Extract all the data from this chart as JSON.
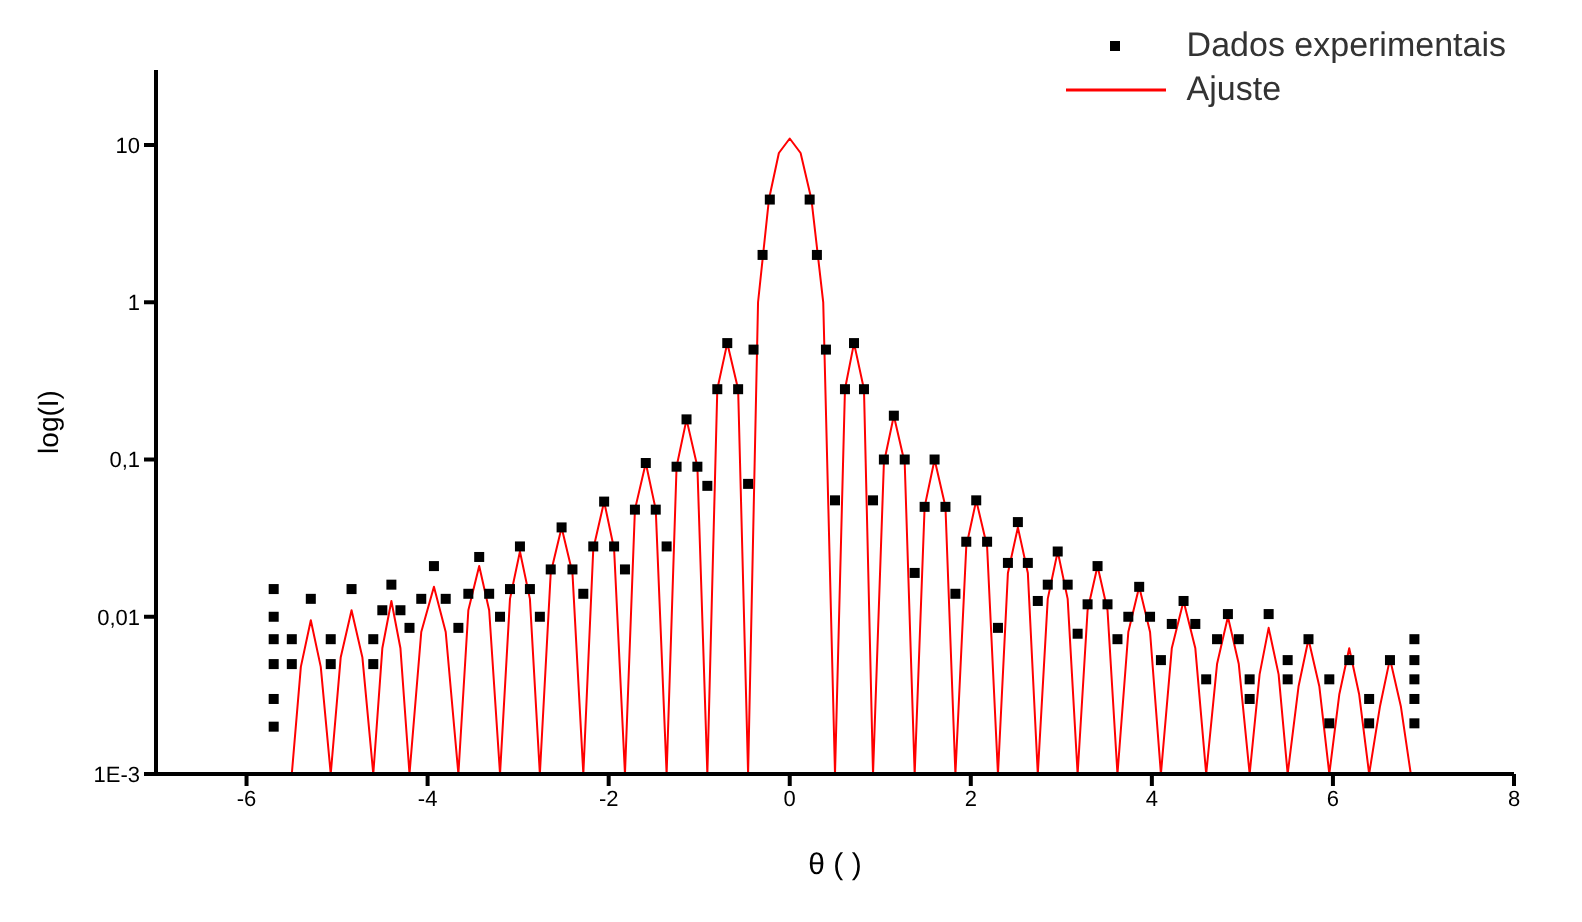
{
  "chart_data": {
    "type": "scatter",
    "xlabel": "θ ( )",
    "ylabel": "log(I)",
    "xlim": [
      -7,
      8
    ],
    "xticks": [
      -6,
      -4,
      -2,
      0,
      2,
      4,
      6,
      8
    ],
    "ylim": [
      0.001,
      30
    ],
    "yticks": [
      {
        "value": 0.001,
        "label": "1E-3"
      },
      {
        "value": 0.01,
        "label": "0,01"
      },
      {
        "value": 0.1,
        "label": "0,1"
      },
      1,
      10
    ],
    "log": "y",
    "legend": "top right",
    "line_style": "solid",
    "series": [
      {
        "name": "Dados experimentais",
        "marker": "square",
        "color": "#000000",
        "x": [
          0.22,
          0.3,
          0.4,
          0.5,
          0.61,
          0.71,
          0.82,
          0.92,
          1.04,
          1.15,
          1.27,
          1.38,
          1.49,
          1.6,
          1.72,
          1.83,
          1.95,
          2.06,
          2.18,
          2.3,
          2.41,
          2.52,
          2.63,
          2.74,
          2.85,
          2.96,
          3.07,
          3.18,
          3.29,
          3.4,
          3.51,
          3.62,
          3.74,
          3.86,
          3.98,
          4.1,
          4.22,
          4.35,
          4.48,
          4.6,
          4.72,
          4.84,
          4.96,
          5.08,
          5.29,
          5.5,
          5.73,
          5.96,
          6.18,
          6.4,
          6.63,
          6.9,
          6.9,
          6.9,
          6.9,
          6.9,
          6.4,
          5.96,
          5.5,
          5.08,
          -0.22,
          -0.3,
          -0.4,
          -0.46,
          -0.57,
          -0.69,
          -0.8,
          -0.91,
          -1.02,
          -1.14,
          -1.25,
          -1.36,
          -1.48,
          -1.59,
          -1.71,
          -1.82,
          -1.94,
          -2.05,
          -2.17,
          -2.28,
          -2.4,
          -2.52,
          -2.64,
          -2.76,
          -2.87,
          -2.98,
          -3.09,
          -3.2,
          -3.32,
          -3.43,
          -3.55,
          -3.66,
          -3.8,
          -3.93,
          -4.07,
          -4.2,
          -4.3,
          -4.4,
          -4.5,
          -4.6,
          -4.84,
          -5.07,
          -5.29,
          -5.5,
          -5.7,
          -5.7,
          -5.7,
          -5.7,
          -5.7,
          -5.7,
          -5.5,
          -5.07,
          -4.6
        ],
        "values": [
          4.5,
          2.0,
          0.5,
          0.055,
          0.28,
          0.55,
          0.28,
          0.055,
          0.1,
          0.19,
          0.1,
          0.019,
          0.05,
          0.1,
          0.05,
          0.014,
          0.03,
          0.055,
          0.03,
          0.0085,
          0.022,
          0.04,
          0.022,
          0.0126,
          0.016,
          0.026,
          0.016,
          0.0078,
          0.012,
          0.021,
          0.012,
          0.0072,
          0.01,
          0.0155,
          0.01,
          0.0053,
          0.009,
          0.0126,
          0.009,
          0.004,
          0.0072,
          0.0104,
          0.0072,
          0.003,
          0.0104,
          0.0053,
          0.0072,
          0.004,
          0.0053,
          0.003,
          0.0053,
          0.0072,
          0.0053,
          0.004,
          0.003,
          0.0021,
          0.0021,
          0.0021,
          0.004,
          0.004,
          4.5,
          2.0,
          0.5,
          0.07,
          0.28,
          0.55,
          0.28,
          0.068,
          0.09,
          0.18,
          0.09,
          0.028,
          0.048,
          0.095,
          0.048,
          0.02,
          0.028,
          0.054,
          0.028,
          0.014,
          0.02,
          0.037,
          0.02,
          0.01,
          0.015,
          0.028,
          0.015,
          0.01,
          0.014,
          0.024,
          0.014,
          0.0085,
          0.013,
          0.021,
          0.013,
          0.0085,
          0.011,
          0.016,
          0.011,
          0.0072,
          0.015,
          0.0072,
          0.013,
          0.0072,
          0.015,
          0.01,
          0.0072,
          0.005,
          0.003,
          0.002,
          0.005,
          0.005,
          0.005
        ]
      },
      {
        "name": "Ajuste",
        "type": "line",
        "marker": "none",
        "color": "#ff0000",
        "x": [
          -5.5,
          -5.4,
          -5.29,
          -5.18,
          -5.07,
          -4.96,
          -4.84,
          -4.72,
          -4.6,
          -4.5,
          -4.4,
          -4.3,
          -4.2,
          -4.07,
          -3.93,
          -3.8,
          -3.66,
          -3.55,
          -3.43,
          -3.32,
          -3.2,
          -3.09,
          -2.98,
          -2.87,
          -2.76,
          -2.64,
          -2.52,
          -2.4,
          -2.28,
          -2.17,
          -2.05,
          -1.94,
          -1.82,
          -1.71,
          -1.59,
          -1.48,
          -1.36,
          -1.25,
          -1.14,
          -1.02,
          -0.91,
          -0.8,
          -0.69,
          -0.57,
          -0.46,
          -0.35,
          -0.23,
          -0.12,
          0,
          0.12,
          0.24,
          0.37,
          0.5,
          0.61,
          0.71,
          0.82,
          0.92,
          1.04,
          1.15,
          1.27,
          1.38,
          1.49,
          1.6,
          1.72,
          1.83,
          1.95,
          2.06,
          2.18,
          2.3,
          2.41,
          2.52,
          2.63,
          2.74,
          2.85,
          2.96,
          3.07,
          3.18,
          3.29,
          3.4,
          3.51,
          3.62,
          3.74,
          3.86,
          3.98,
          4.1,
          4.22,
          4.35,
          4.48,
          4.6,
          4.72,
          4.84,
          4.96,
          5.08,
          5.19,
          5.29,
          5.4,
          5.5,
          5.62,
          5.73,
          5.85,
          5.96,
          6.07,
          6.18,
          6.29,
          6.4,
          6.52,
          6.63,
          6.75,
          6.86
        ],
        "values": [
          0.001,
          0.0048,
          0.0095,
          0.0048,
          0.001,
          0.0055,
          0.011,
          0.0055,
          0.001,
          0.0063,
          0.0126,
          0.0063,
          0.001,
          0.008,
          0.0155,
          0.008,
          0.001,
          0.011,
          0.021,
          0.011,
          0.001,
          0.013,
          0.026,
          0.013,
          0.001,
          0.019,
          0.037,
          0.019,
          0.001,
          0.027,
          0.054,
          0.027,
          0.001,
          0.048,
          0.095,
          0.048,
          0.001,
          0.09,
          0.18,
          0.09,
          0.001,
          0.28,
          0.55,
          0.28,
          0.001,
          1.0,
          4.5,
          8.9,
          11,
          8.9,
          4.5,
          1.0,
          0.001,
          0.28,
          0.55,
          0.28,
          0.001,
          0.095,
          0.19,
          0.095,
          0.001,
          0.05,
          0.1,
          0.05,
          0.001,
          0.028,
          0.055,
          0.028,
          0.001,
          0.019,
          0.037,
          0.019,
          0.001,
          0.013,
          0.026,
          0.013,
          0.001,
          0.011,
          0.021,
          0.011,
          0.001,
          0.008,
          0.0155,
          0.008,
          0.001,
          0.0063,
          0.0126,
          0.0063,
          0.001,
          0.005,
          0.01,
          0.005,
          0.001,
          0.0043,
          0.0085,
          0.0043,
          0.001,
          0.0036,
          0.0072,
          0.0036,
          0.001,
          0.0032,
          0.0063,
          0.0032,
          0.001,
          0.0027,
          0.0054,
          0.0027,
          0.001
        ]
      }
    ]
  }
}
